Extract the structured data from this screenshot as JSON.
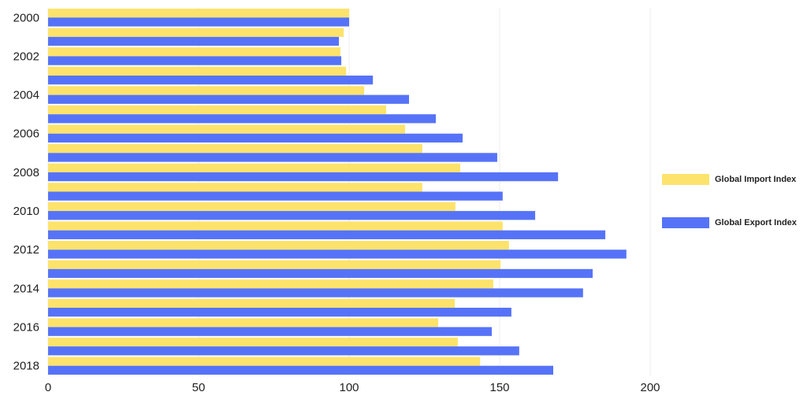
{
  "chart_data": {
    "type": "barh",
    "categories": [
      "2000",
      null,
      "2002",
      null,
      "2004",
      null,
      "2006",
      null,
      "2008",
      null,
      "2010",
      null,
      "2012",
      null,
      "2014",
      null,
      "2016",
      null,
      "2018"
    ],
    "series": [
      {
        "name": "Global Import Index",
        "color": "#fde36b",
        "values": [
          100,
          98.2,
          97.1,
          99,
          105,
          112.3,
          118.6,
          124.3,
          136.9,
          124.3,
          135.3,
          151,
          153.1,
          150.3,
          147.9,
          135.1,
          129.6,
          136.1,
          143.5
        ]
      },
      {
        "name": "Global Export Index",
        "color": "#5673f7",
        "values": [
          100,
          96.6,
          97.4,
          107.9,
          119.9,
          128.8,
          137.7,
          149.2,
          169.4,
          151,
          161.8,
          185.1,
          192.1,
          180.9,
          177.7,
          153.9,
          147.4,
          156.5,
          167.8
        ]
      }
    ],
    "xlim": [
      0,
      200
    ],
    "xticks": [
      0,
      50,
      100,
      150,
      200
    ],
    "grid": true,
    "legend": "right"
  }
}
